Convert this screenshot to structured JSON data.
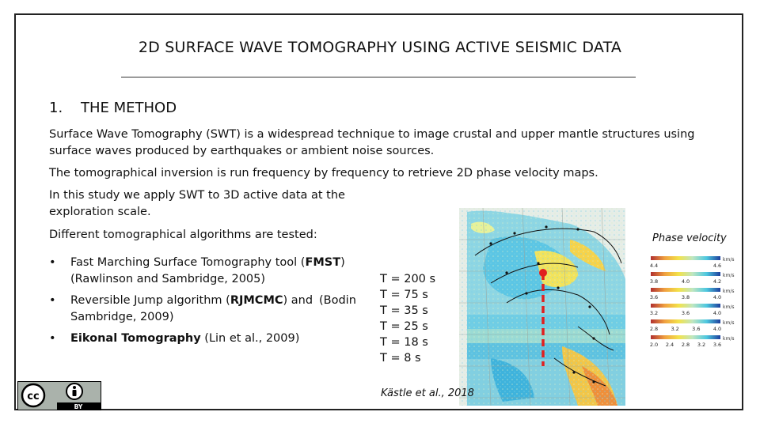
{
  "title": "2D SURFACE WAVE TOMOGRAPHY USING ACTIVE SEISMIC DATA",
  "section": {
    "number": "1.",
    "heading": "THE METHOD"
  },
  "paragraphs": {
    "p1": "Surface Wave Tomography (SWT) is a widespread technique to image crustal and upper mantle structures using surface waves produced by earthquakes or ambient noise sources.",
    "p2": "The tomographical inversion is run frequency by frequency to retrieve 2D phase velocity maps.",
    "p3": "In this study we apply SWT to 3D active data at the exploration scale.",
    "p4": "Different tomographical algorithms are tested:"
  },
  "bullet_symbol": "•",
  "bullets": [
    {
      "pre": "Fast Marching Surface Tomography tool (",
      "bold": "FMST",
      "post": ") (Rawlinson and Sambridge, 2005)",
      "extra": ""
    },
    {
      "pre": "Reversible Jump algorithm (",
      "bold": "RJMCMC",
      "post": ") and Sambridge, 2009)",
      "extra": "(Bodin"
    },
    {
      "pre": "",
      "bold": "Eikonal Tomography",
      "post": " (Lin et al., 2009)",
      "extra": ""
    }
  ],
  "periods": [
    "T = 200 s",
    "T = 75 s",
    "T = 35 s",
    "T = 25 s",
    "T = 18 s",
    "T = 8 s"
  ],
  "phase_velocity_label": "Phase velocity",
  "velocity_scales": [
    {
      "ticks": [
        "4.4",
        "4.6"
      ],
      "unit": "km/s"
    },
    {
      "ticks": [
        "3.8",
        "4.0",
        "4.2"
      ],
      "unit": "km/s"
    },
    {
      "ticks": [
        "3.6",
        "3.8",
        "4.0"
      ],
      "unit": "km/s"
    },
    {
      "ticks": [
        "3.2",
        "3.6",
        "4.0"
      ],
      "unit": "km/s"
    },
    {
      "ticks": [
        "2.8",
        "3.2",
        "3.6",
        "4.0"
      ],
      "unit": "km/s"
    },
    {
      "ticks": [
        "2.0",
        "2.4",
        "2.8",
        "3.2",
        "3.6"
      ],
      "unit": "km/s"
    }
  ],
  "citation": "Kästle et al., 2018",
  "license": {
    "by_label": "BY",
    "cc_symbol": "cc",
    "attribution_icon": "person-icon"
  },
  "colors": {
    "profile_line": "#e02020",
    "map_cyan": "#4ec8e0",
    "map_yellow": "#f3e24a",
    "map_orange": "#f0a040"
  }
}
